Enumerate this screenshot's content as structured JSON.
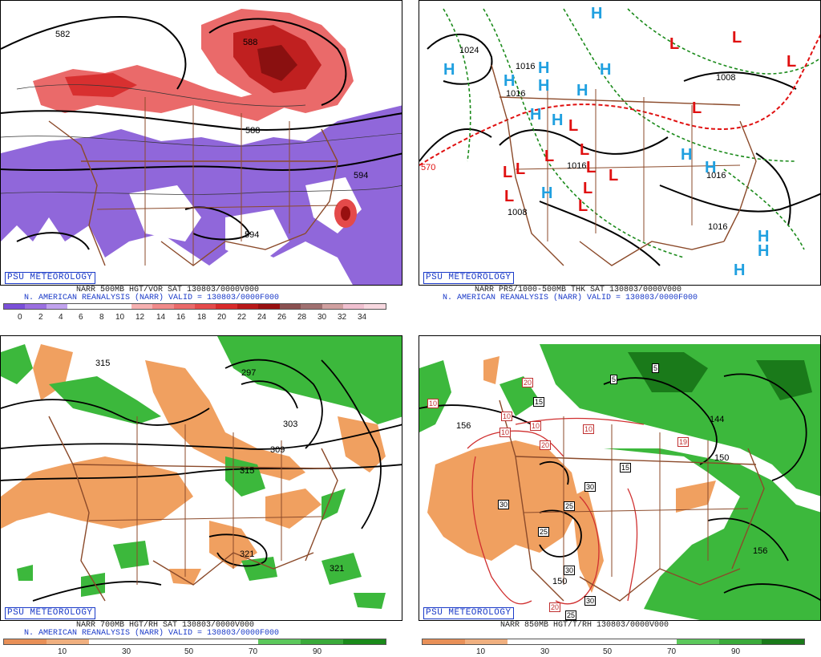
{
  "psu_label": "PSU METEOROLOGY",
  "colors": {
    "vorticity": [
      "#7a4fd8",
      "#9b6fe0",
      "#c1a3ee",
      "#ffffff",
      "#ffffff",
      "#ffffff",
      "#f6b0b0",
      "#f08a8a",
      "#ea6a6a",
      "#e44a4a",
      "#d82a2a",
      "#b81818",
      "#981010",
      "#8a5050",
      "#a07070",
      "#d0a0a0",
      "#f0c0d0",
      "#f8d8e0"
    ],
    "rh": [
      "#e89058",
      "#f0b080",
      "#ffffff",
      "#ffffff",
      "#ffffff",
      "#ffffff",
      "#5cc85c",
      "#3aaa3a",
      "#1a8a1a"
    ],
    "low_marker": "#e01010",
    "high_marker": "#20a0e0",
    "borders": "#8b4a2a"
  },
  "panels": [
    {
      "id": "top-left",
      "caption_line1": "NARR 500MB HGT/VOR SAT 130803/0000V000",
      "caption_line2": "N. AMERICAN REANALYSIS (NARR) VALID = 130803/0000F000",
      "colorbar_ticks": [
        "0",
        "2",
        "4",
        "6",
        "8",
        "10",
        "12",
        "14",
        "16",
        "18",
        "20",
        "22",
        "24",
        "26",
        "28",
        "30",
        "32",
        "34"
      ],
      "contour_labels": [
        "582",
        "588",
        "594",
        "594",
        "588"
      ]
    },
    {
      "id": "top-right",
      "caption_line1": "NARR PRS/1000-500MB THK SAT 130803/0000V000",
      "caption_line2": "N. AMERICAN REANALYSIS (NARR) VALID = 130803/0000F000",
      "contour_labels": [
        "1024",
        "1016",
        "1016",
        "1016",
        "1008",
        "1016",
        "1008",
        "1016",
        "570"
      ]
    },
    {
      "id": "bottom-left",
      "caption_line1": "NARR 700MB HGT/RH SAT 130803/0000V000",
      "caption_line2": "N. AMERICAN REANALYSIS (NARR) VALID = 130803/0000F000",
      "colorbar_ticks": [
        "10",
        "30",
        "50",
        "70",
        "90"
      ],
      "contour_labels": [
        "315",
        "297",
        "303",
        "309",
        "315",
        "321",
        "321"
      ]
    },
    {
      "id": "bottom-right",
      "caption_line1": "NARR 850MB HGT/T/RH 130803/0000V000",
      "colorbar_ticks": [
        "10",
        "30",
        "50",
        "70",
        "90"
      ],
      "contour_labels": [
        "156",
        "144",
        "150",
        "156",
        "150"
      ],
      "boxed_labels": [
        "5",
        "5",
        "15",
        "15",
        "20",
        "20",
        "10",
        "10",
        "10",
        "10",
        "19",
        "30",
        "25",
        "25",
        "30",
        "30",
        "20",
        "25",
        "30",
        "10"
      ]
    }
  ]
}
